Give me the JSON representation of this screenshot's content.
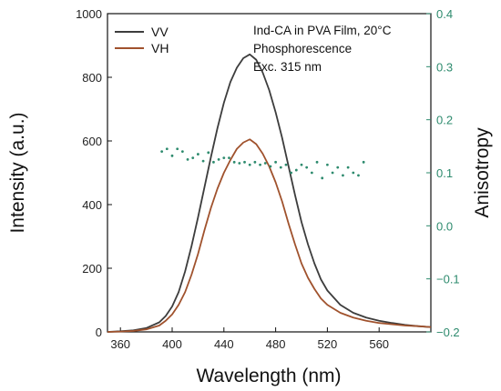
{
  "chart_data": {
    "type": "line",
    "annotations": [
      "Ind-CA in PVA Film, 20°C",
      "Phosphorescence",
      "Exc. 315 nm"
    ],
    "xlabel": "Wavelength (nm)",
    "ylabel": "Intensity (a.u.)",
    "y2label": "Anisotropy",
    "xlim": [
      350,
      600
    ],
    "ylim": [
      0,
      1000
    ],
    "y2lim": [
      -0.2,
      0.4
    ],
    "xticks": [
      360,
      400,
      440,
      480,
      520,
      560
    ],
    "yticks": [
      0,
      200,
      400,
      600,
      800,
      1000
    ],
    "y2ticks": [
      -0.2,
      -0.1,
      0.0,
      0.1,
      0.2,
      0.3,
      0.4
    ],
    "y2ticklabels": [
      "−0.2",
      "−0.1",
      "0.0",
      "0.1",
      "0.2",
      "0.3",
      "0.4"
    ],
    "legend": {
      "position": "top-left"
    },
    "x": [
      350,
      360,
      370,
      380,
      390,
      395,
      400,
      405,
      410,
      415,
      420,
      425,
      430,
      435,
      440,
      445,
      450,
      455,
      460,
      465,
      470,
      475,
      480,
      485,
      490,
      495,
      500,
      505,
      510,
      515,
      520,
      530,
      540,
      550,
      560,
      570,
      580,
      590,
      600
    ],
    "series": [
      {
        "name": "VV",
        "color": "#3d3d3d",
        "values": [
          0,
          2,
          5,
          12,
          30,
          50,
          80,
          125,
          190,
          270,
          360,
          455,
          550,
          640,
          720,
          785,
          830,
          860,
          872,
          855,
          815,
          760,
          690,
          610,
          520,
          430,
          345,
          275,
          215,
          165,
          130,
          85,
          60,
          45,
          35,
          28,
          22,
          18,
          15
        ]
      },
      {
        "name": "VH",
        "color": "#a0522d",
        "values": [
          0,
          1,
          3,
          8,
          20,
          35,
          55,
          85,
          125,
          180,
          245,
          320,
          390,
          450,
          500,
          540,
          575,
          595,
          605,
          590,
          560,
          520,
          470,
          410,
          340,
          275,
          215,
          170,
          135,
          105,
          85,
          60,
          45,
          35,
          28,
          24,
          20,
          18,
          15
        ]
      }
    ],
    "anisotropy": {
      "axis": "right",
      "style": "dots",
      "color": "#2e8b6e",
      "x": [
        392,
        396,
        400,
        404,
        408,
        412,
        416,
        420,
        424,
        428,
        432,
        436,
        440,
        444,
        448,
        452,
        456,
        460,
        464,
        468,
        472,
        476,
        480,
        484,
        488,
        492,
        496,
        500,
        504,
        508,
        512,
        516,
        520,
        524,
        528,
        532,
        536,
        540,
        544,
        548
      ],
      "values": [
        0.14,
        0.145,
        0.132,
        0.145,
        0.14,
        0.125,
        0.128,
        0.135,
        0.122,
        0.138,
        0.12,
        0.125,
        0.128,
        0.128,
        0.12,
        0.118,
        0.12,
        0.115,
        0.12,
        0.115,
        0.118,
        0.112,
        0.12,
        0.11,
        0.115,
        0.1,
        0.105,
        0.115,
        0.11,
        0.1,
        0.12,
        0.09,
        0.115,
        0.1,
        0.11,
        0.095,
        0.11,
        0.1,
        0.095,
        0.12
      ]
    }
  }
}
